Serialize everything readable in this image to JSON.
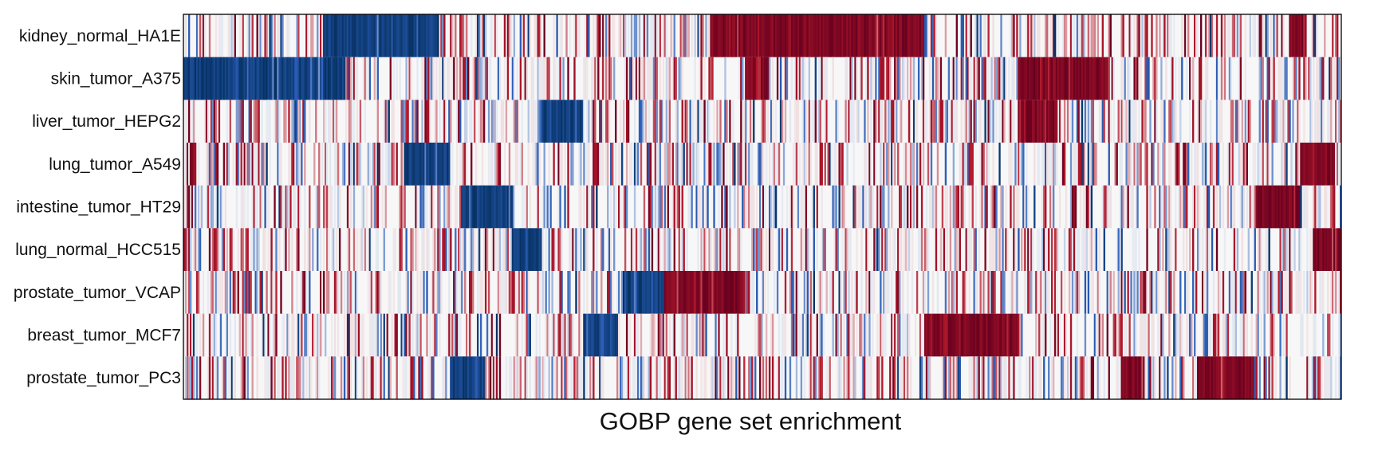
{
  "chart_data": {
    "type": "heatmap",
    "xlabel": "GOBP gene set enrichment",
    "row_labels": [
      "kidney_normal_HA1E",
      "skin_tumor_A375",
      "liver_tumor_HEPG2",
      "lung_tumor_A549",
      "intestine_tumor_HT29",
      "lung_normal_HCC515",
      "prostate_tumor_VCAP",
      "breast_tumor_MCF7",
      "prostate_tumor_PC3"
    ],
    "n_columns": 730,
    "value_range": [
      -1,
      1
    ],
    "colors": {
      "negative": "#053061",
      "neutral": "#f7f7f7",
      "positive": "#67001f",
      "neg_mid": "#2c5fb8",
      "pos_mid": "#b2182b",
      "axes": "#000000"
    },
    "strong_blocks": [
      {
        "row": 0,
        "sign": "negative",
        "start": 0.12,
        "end": 0.22
      },
      {
        "row": 0,
        "sign": "positive",
        "start": 0.455,
        "end": 0.64
      },
      {
        "row": 0,
        "sign": "positive",
        "start": 0.955,
        "end": 0.97
      },
      {
        "row": 1,
        "sign": "negative",
        "start": 0.0,
        "end": 0.06
      },
      {
        "row": 1,
        "sign": "negative",
        "start": 0.06,
        "end": 0.14
      },
      {
        "row": 1,
        "sign": "positive",
        "start": 0.72,
        "end": 0.8
      },
      {
        "row": 1,
        "sign": "positive",
        "start": 0.485,
        "end": 0.505
      },
      {
        "row": 2,
        "sign": "negative",
        "start": 0.31,
        "end": 0.345
      },
      {
        "row": 2,
        "sign": "positive",
        "start": 0.72,
        "end": 0.755
      },
      {
        "row": 3,
        "sign": "negative",
        "start": 0.19,
        "end": 0.23
      },
      {
        "row": 3,
        "sign": "positive",
        "start": 0.965,
        "end": 0.995
      },
      {
        "row": 4,
        "sign": "negative",
        "start": 0.24,
        "end": 0.285
      },
      {
        "row": 4,
        "sign": "positive",
        "start": 0.925,
        "end": 0.965
      },
      {
        "row": 5,
        "sign": "negative",
        "start": 0.285,
        "end": 0.31
      },
      {
        "row": 5,
        "sign": "positive",
        "start": 0.975,
        "end": 1.0
      },
      {
        "row": 6,
        "sign": "negative",
        "start": 0.38,
        "end": 0.415
      },
      {
        "row": 6,
        "sign": "positive",
        "start": 0.415,
        "end": 0.485
      },
      {
        "row": 7,
        "sign": "negative",
        "start": 0.345,
        "end": 0.375
      },
      {
        "row": 7,
        "sign": "positive",
        "start": 0.64,
        "end": 0.72
      },
      {
        "row": 8,
        "sign": "negative",
        "start": 0.23,
        "end": 0.26
      },
      {
        "row": 8,
        "sign": "positive",
        "start": 0.875,
        "end": 0.925
      },
      {
        "row": 8,
        "sign": "positive",
        "start": 0.81,
        "end": 0.83
      }
    ],
    "grid": false,
    "legend": "none"
  }
}
